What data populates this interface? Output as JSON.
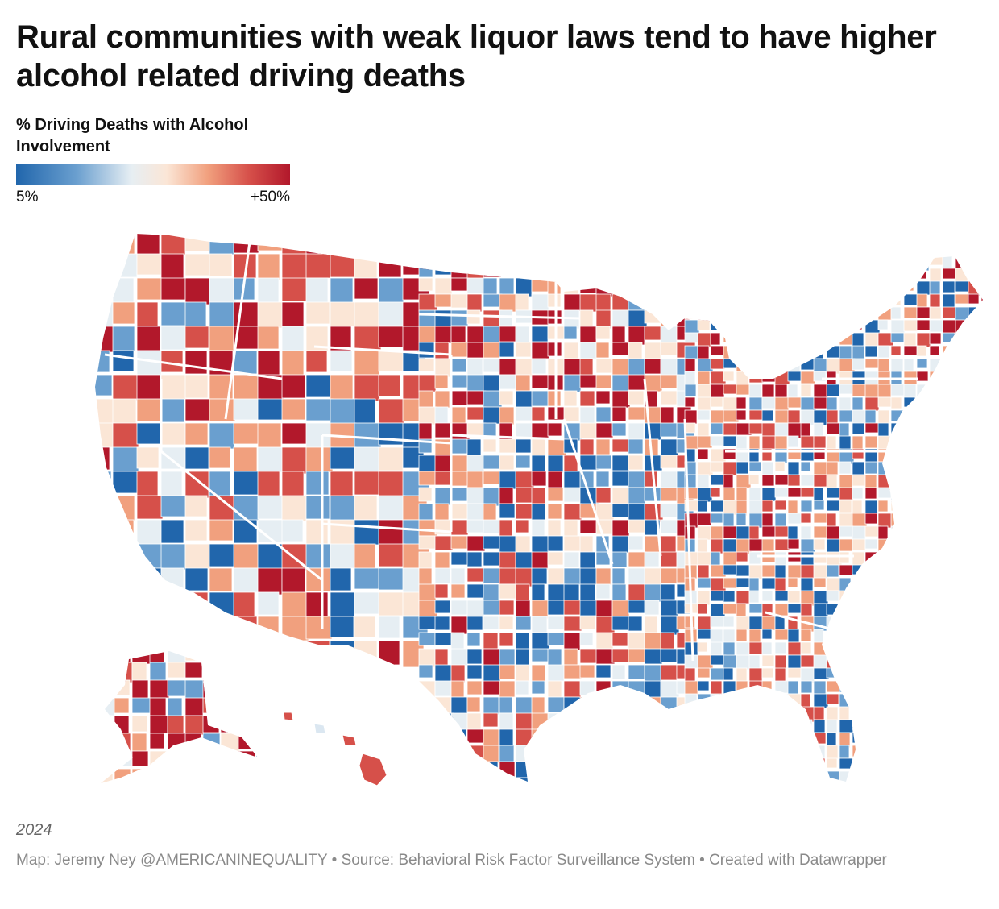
{
  "title": "Rural communities with weak liquor laws tend to have higher alcohol related driving deaths",
  "legend": {
    "title": "% Driving Deaths with Alcohol Involvement",
    "min_label": "5%",
    "max_label": "+50%",
    "colors": [
      "#2166ac",
      "#6a9fcf",
      "#e6eef3",
      "#fbe6d6",
      "#f1a07e",
      "#d6504a",
      "#b2182b"
    ]
  },
  "year": "2024",
  "credits": {
    "map": "Map: Jeremy Ney @AMERICANINEQUALITY",
    "source": "• Source: Behavioral Risk Factor Surveillance System",
    "created": "• Created with Datawrapper"
  }
}
